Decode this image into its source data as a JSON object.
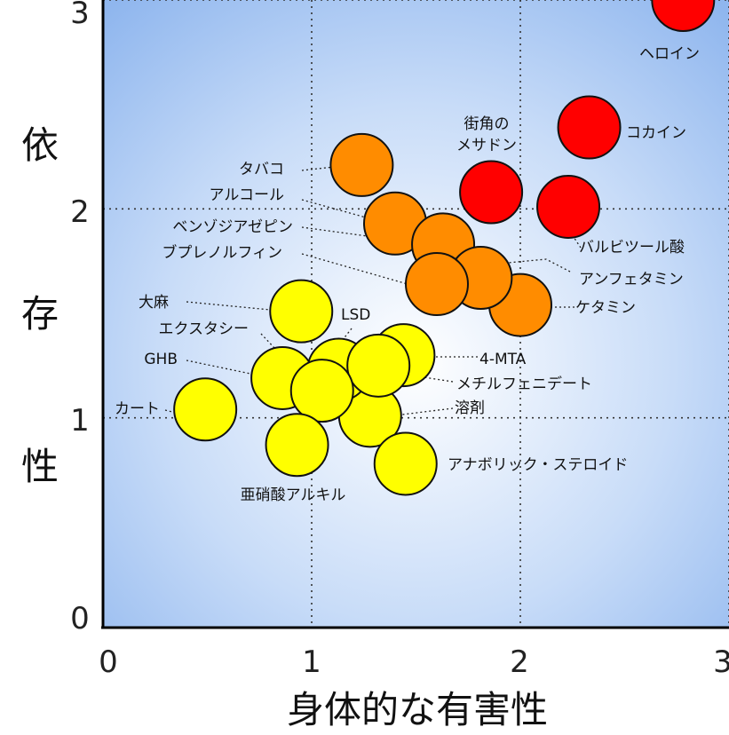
{
  "chart_data": {
    "type": "scatter",
    "xlabel": "身体的な有害性",
    "ylabel": "依存性",
    "xlim": [
      0,
      3
    ],
    "ylim": [
      0,
      3
    ],
    "x_ticks": [
      "0",
      "1",
      "2",
      "3"
    ],
    "y_ticks": [
      "0",
      "1",
      "2",
      "3"
    ],
    "grid": true,
    "colors": {
      "red": "#ff0000",
      "orange": "#ff8c00",
      "yellow": "#ffff00"
    },
    "points": [
      {
        "name": "ヘロイン",
        "x": 2.78,
        "y": 3.0,
        "color": "red"
      },
      {
        "name": "コカイン",
        "x": 2.33,
        "y": 2.39,
        "color": "red"
      },
      {
        "name": "バルビツール酸",
        "x": 2.23,
        "y": 2.01,
        "color": "red"
      },
      {
        "name": "街角の\nメサドン",
        "x": 1.86,
        "y": 2.08,
        "color": "red"
      },
      {
        "name": "アルコール",
        "x": 1.4,
        "y": 1.93,
        "color": "orange"
      },
      {
        "name": "ケタミン",
        "x": 2.0,
        "y": 1.54,
        "color": "orange"
      },
      {
        "name": "ベンゾジアゼピン",
        "x": 1.63,
        "y": 1.83,
        "color": "orange"
      },
      {
        "name": "アンフェタミン",
        "x": 1.81,
        "y": 1.67,
        "color": "orange"
      },
      {
        "name": "タバコ",
        "x": 1.24,
        "y": 2.21,
        "color": "orange"
      },
      {
        "name": "ブプレノルフィン",
        "x": 1.6,
        "y": 1.64,
        "color": "orange"
      },
      {
        "name": "大麻",
        "x": 0.95,
        "y": 1.51,
        "color": "yellow"
      },
      {
        "name": "溶剤",
        "x": 1.28,
        "y": 1.01,
        "color": "yellow"
      },
      {
        "name": "4-MTA",
        "x": 1.44,
        "y": 1.3,
        "color": "yellow"
      },
      {
        "name": "LSD",
        "x": 1.13,
        "y": 1.23,
        "color": "yellow"
      },
      {
        "name": "メチルフェニデート",
        "x": 1.32,
        "y": 1.25,
        "color": "yellow"
      },
      {
        "name": "アナボリック・ステロイド",
        "x": 1.45,
        "y": 0.78,
        "color": "yellow"
      },
      {
        "name": "GHB",
        "x": 0.86,
        "y": 1.19,
        "color": "yellow"
      },
      {
        "name": "エクスタシー",
        "x": 1.05,
        "y": 1.13,
        "color": "yellow"
      },
      {
        "name": "亜硝酸アルキル",
        "x": 0.93,
        "y": 0.87,
        "color": "yellow"
      },
      {
        "name": "カート",
        "x": 0.49,
        "y": 1.04,
        "color": "yellow"
      }
    ]
  }
}
